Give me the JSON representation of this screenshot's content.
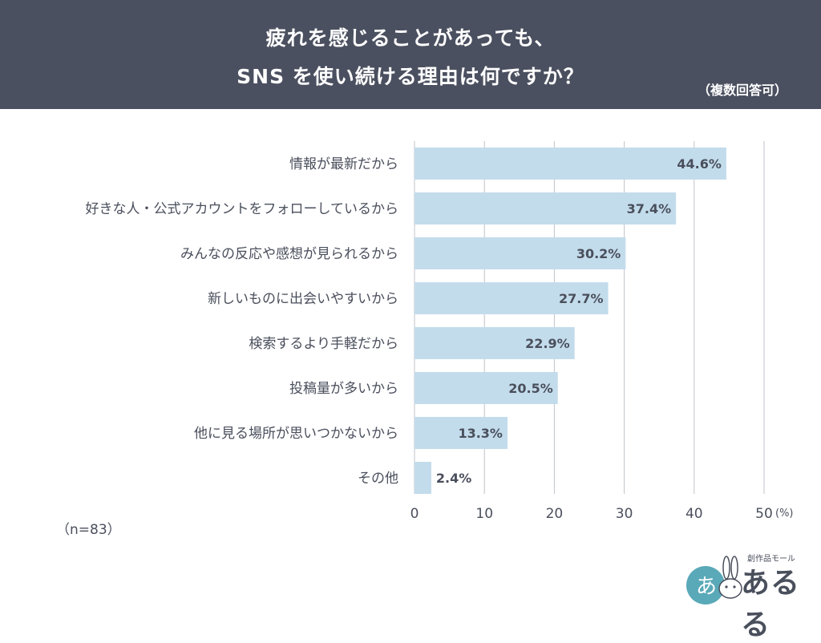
{
  "header": {
    "title_line1": "疲れを感じることがあっても、",
    "title_line2": "SNS を使い続ける理由は何ですか？",
    "subtitle": "（複数回答可）"
  },
  "sample_note": "（n=83）",
  "logo": {
    "text": "あるる",
    "sub": "創作品モール",
    "badge": "あ"
  },
  "colors": {
    "header_bg": "#4b5060",
    "bar": "#c3dcec",
    "grid": "#bfc3c9",
    "text": "#4a4f5c"
  },
  "chart_data": {
    "type": "bar",
    "orientation": "horizontal",
    "categories": [
      "情報が最新だから",
      "好きな人・公式アカウントをフォローしているから",
      "みんなの反応や感想が見られるから",
      "新しいものに出会いやすいから",
      "検索するより手軽だから",
      "投稿量が多いから",
      "他に見る場所が思いつかないから",
      "その他"
    ],
    "values": [
      44.6,
      37.4,
      30.2,
      27.7,
      22.9,
      20.5,
      13.3,
      2.4
    ],
    "value_labels": [
      "44.6%",
      "37.4%",
      "30.2%",
      "27.7%",
      "22.9%",
      "20.5%",
      "13.3%",
      "2.4%"
    ],
    "x_ticks": [
      "0",
      "10",
      "20",
      "30",
      "40",
      "50"
    ],
    "x_unit": "(%)",
    "xlim": [
      0,
      50
    ],
    "grid": true
  }
}
